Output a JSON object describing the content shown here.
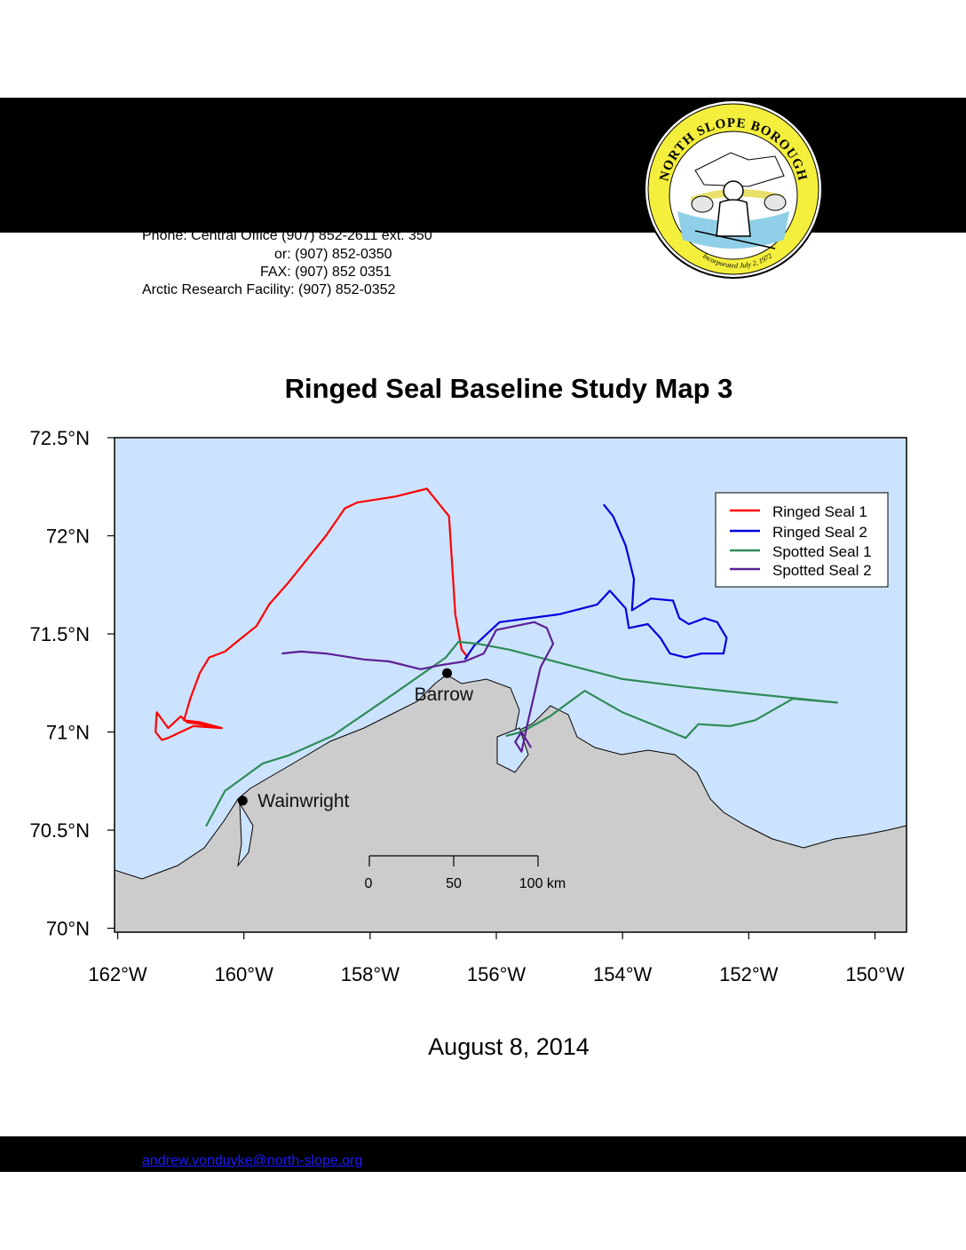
{
  "header": {
    "phone_line": "Phone: Central Office (907) 852-2611 ext. 350",
    "alt_phone_line": "or: (907) 852-0350",
    "fax_line": "FAX: (907) 852 0351",
    "research_line": "Arctic Research Facility: (907) 852-0352",
    "seal_text": "NORTH SLOPE BOROUGH",
    "seal_subtext": "Incorporated July 2, 1972"
  },
  "footer": {
    "email": "andrew.vonduyke@north-slope.org"
  },
  "colors": {
    "ocean": "#cce3ff",
    "land": "#cccccc",
    "ringed_seal_1": "#ff0000",
    "ringed_seal_2": "#0000dd",
    "spotted_seal_1": "#2e8b57",
    "spotted_seal_2": "#5b2096"
  },
  "map": {
    "title": "Ringed Seal Baseline Study Map 3",
    "date": "August 8, 2014",
    "lon_ticks": [
      "162°W",
      "160°W",
      "158°W",
      "156°W",
      "154°W",
      "152°W",
      "150°W"
    ],
    "lat_ticks": [
      "72.5°N",
      "72°N",
      "71.5°N",
      "71°N",
      "70.5°N",
      "70°N"
    ],
    "extent": {
      "lon": [
        -162.05,
        -149.5
      ],
      "lat": [
        69.98,
        72.5
      ]
    },
    "places": [
      {
        "name": "Barrow",
        "lon": -156.78,
        "lat": 71.3
      },
      {
        "name": "Wainwright",
        "lon": -160.02,
        "lat": 70.65
      }
    ],
    "scale_bar": {
      "labels": [
        "0",
        "50",
        "100 km"
      ]
    },
    "legend": {
      "position": "top-right",
      "entries": [
        "Ringed Seal 1",
        "Ringed Seal 2",
        "Spotted Seal 1",
        "Spotted Seal 2"
      ]
    },
    "tracks": [
      {
        "name": "Ringed Seal 1",
        "color": "#ff0000",
        "points": [
          [
            -156.45,
            71.38
          ],
          [
            -156.55,
            71.42
          ],
          [
            -156.65,
            71.6
          ],
          [
            -156.7,
            71.85
          ],
          [
            -156.75,
            72.1
          ],
          [
            -156.9,
            72.16
          ],
          [
            -157.1,
            72.24
          ],
          [
            -157.6,
            72.2
          ],
          [
            -158.2,
            72.17
          ],
          [
            -158.4,
            72.14
          ],
          [
            -158.7,
            72.0
          ],
          [
            -159.3,
            71.76
          ],
          [
            -159.6,
            71.65
          ],
          [
            -159.8,
            71.54
          ],
          [
            -160.15,
            71.45
          ],
          [
            -160.3,
            71.41
          ],
          [
            -160.55,
            71.38
          ],
          [
            -160.7,
            71.3
          ],
          [
            -160.85,
            71.17
          ],
          [
            -160.95,
            71.06
          ],
          [
            -160.7,
            71.05
          ],
          [
            -160.35,
            71.02
          ],
          [
            -160.8,
            71.03
          ],
          [
            -161.0,
            71.0
          ],
          [
            -161.2,
            70.97
          ],
          [
            -161.3,
            70.96
          ],
          [
            -161.4,
            71.0
          ],
          [
            -161.38,
            71.1
          ],
          [
            -161.2,
            71.02
          ],
          [
            -161.0,
            71.08
          ],
          [
            -160.9,
            71.05
          ],
          [
            -160.5,
            71.03
          ]
        ]
      },
      {
        "name": "Ringed Seal 2",
        "color": "#0000dd",
        "points": [
          [
            -156.5,
            71.37
          ],
          [
            -156.35,
            71.44
          ],
          [
            -155.95,
            71.56
          ],
          [
            -155.0,
            71.6
          ],
          [
            -154.4,
            71.65
          ],
          [
            -154.2,
            71.72
          ],
          [
            -153.95,
            71.63
          ],
          [
            -153.9,
            71.53
          ],
          [
            -153.6,
            71.55
          ],
          [
            -153.4,
            71.48
          ],
          [
            -153.25,
            71.4
          ],
          [
            -153.0,
            71.38
          ],
          [
            -152.75,
            71.4
          ],
          [
            -152.4,
            71.4
          ],
          [
            -152.35,
            71.48
          ],
          [
            -152.5,
            71.56
          ],
          [
            -152.7,
            71.58
          ],
          [
            -152.95,
            71.55
          ],
          [
            -153.1,
            71.58
          ],
          [
            -153.2,
            71.67
          ],
          [
            -153.55,
            71.68
          ],
          [
            -153.85,
            71.62
          ],
          [
            -153.82,
            71.78
          ],
          [
            -153.95,
            71.95
          ],
          [
            -154.15,
            72.1
          ],
          [
            -154.3,
            72.16
          ]
        ]
      },
      {
        "name": "Spotted Seal 1",
        "color": "#2e8b57",
        "points": [
          [
            -160.6,
            70.52
          ],
          [
            -160.3,
            70.7
          ],
          [
            -159.7,
            70.84
          ],
          [
            -159.3,
            70.88
          ],
          [
            -158.6,
            70.98
          ],
          [
            -157.6,
            71.2
          ],
          [
            -156.8,
            71.38
          ],
          [
            -156.6,
            71.46
          ],
          [
            -156.3,
            71.45
          ],
          [
            -155.8,
            71.42
          ],
          [
            -154.0,
            71.27
          ],
          [
            -153.0,
            71.23
          ],
          [
            -151.8,
            71.19
          ],
          [
            -150.9,
            71.16
          ],
          [
            -150.6,
            71.15
          ],
          [
            -151.3,
            71.17
          ],
          [
            -151.9,
            71.06
          ],
          [
            -152.3,
            71.03
          ],
          [
            -152.8,
            71.04
          ],
          [
            -153.0,
            70.97
          ],
          [
            -154.0,
            71.1
          ],
          [
            -154.6,
            71.21
          ],
          [
            -155.15,
            71.08
          ],
          [
            -155.6,
            71.0
          ],
          [
            -155.85,
            70.98
          ]
        ]
      },
      {
        "name": "Spotted Seal 2",
        "color": "#5b2096",
        "points": [
          [
            -159.4,
            71.4
          ],
          [
            -159.1,
            71.41
          ],
          [
            -158.7,
            71.4
          ],
          [
            -158.1,
            71.37
          ],
          [
            -157.7,
            71.36
          ],
          [
            -157.2,
            71.32
          ],
          [
            -156.9,
            71.34
          ],
          [
            -156.5,
            71.36
          ],
          [
            -156.2,
            71.4
          ],
          [
            -156.0,
            71.52
          ],
          [
            -155.7,
            71.54
          ],
          [
            -155.4,
            71.56
          ],
          [
            -155.2,
            71.53
          ],
          [
            -155.1,
            71.45
          ],
          [
            -155.3,
            71.33
          ],
          [
            -155.5,
            71.05
          ],
          [
            -155.6,
            70.9
          ],
          [
            -155.7,
            70.95
          ],
          [
            -155.6,
            71.0
          ],
          [
            -155.45,
            70.92
          ]
        ]
      }
    ]
  }
}
